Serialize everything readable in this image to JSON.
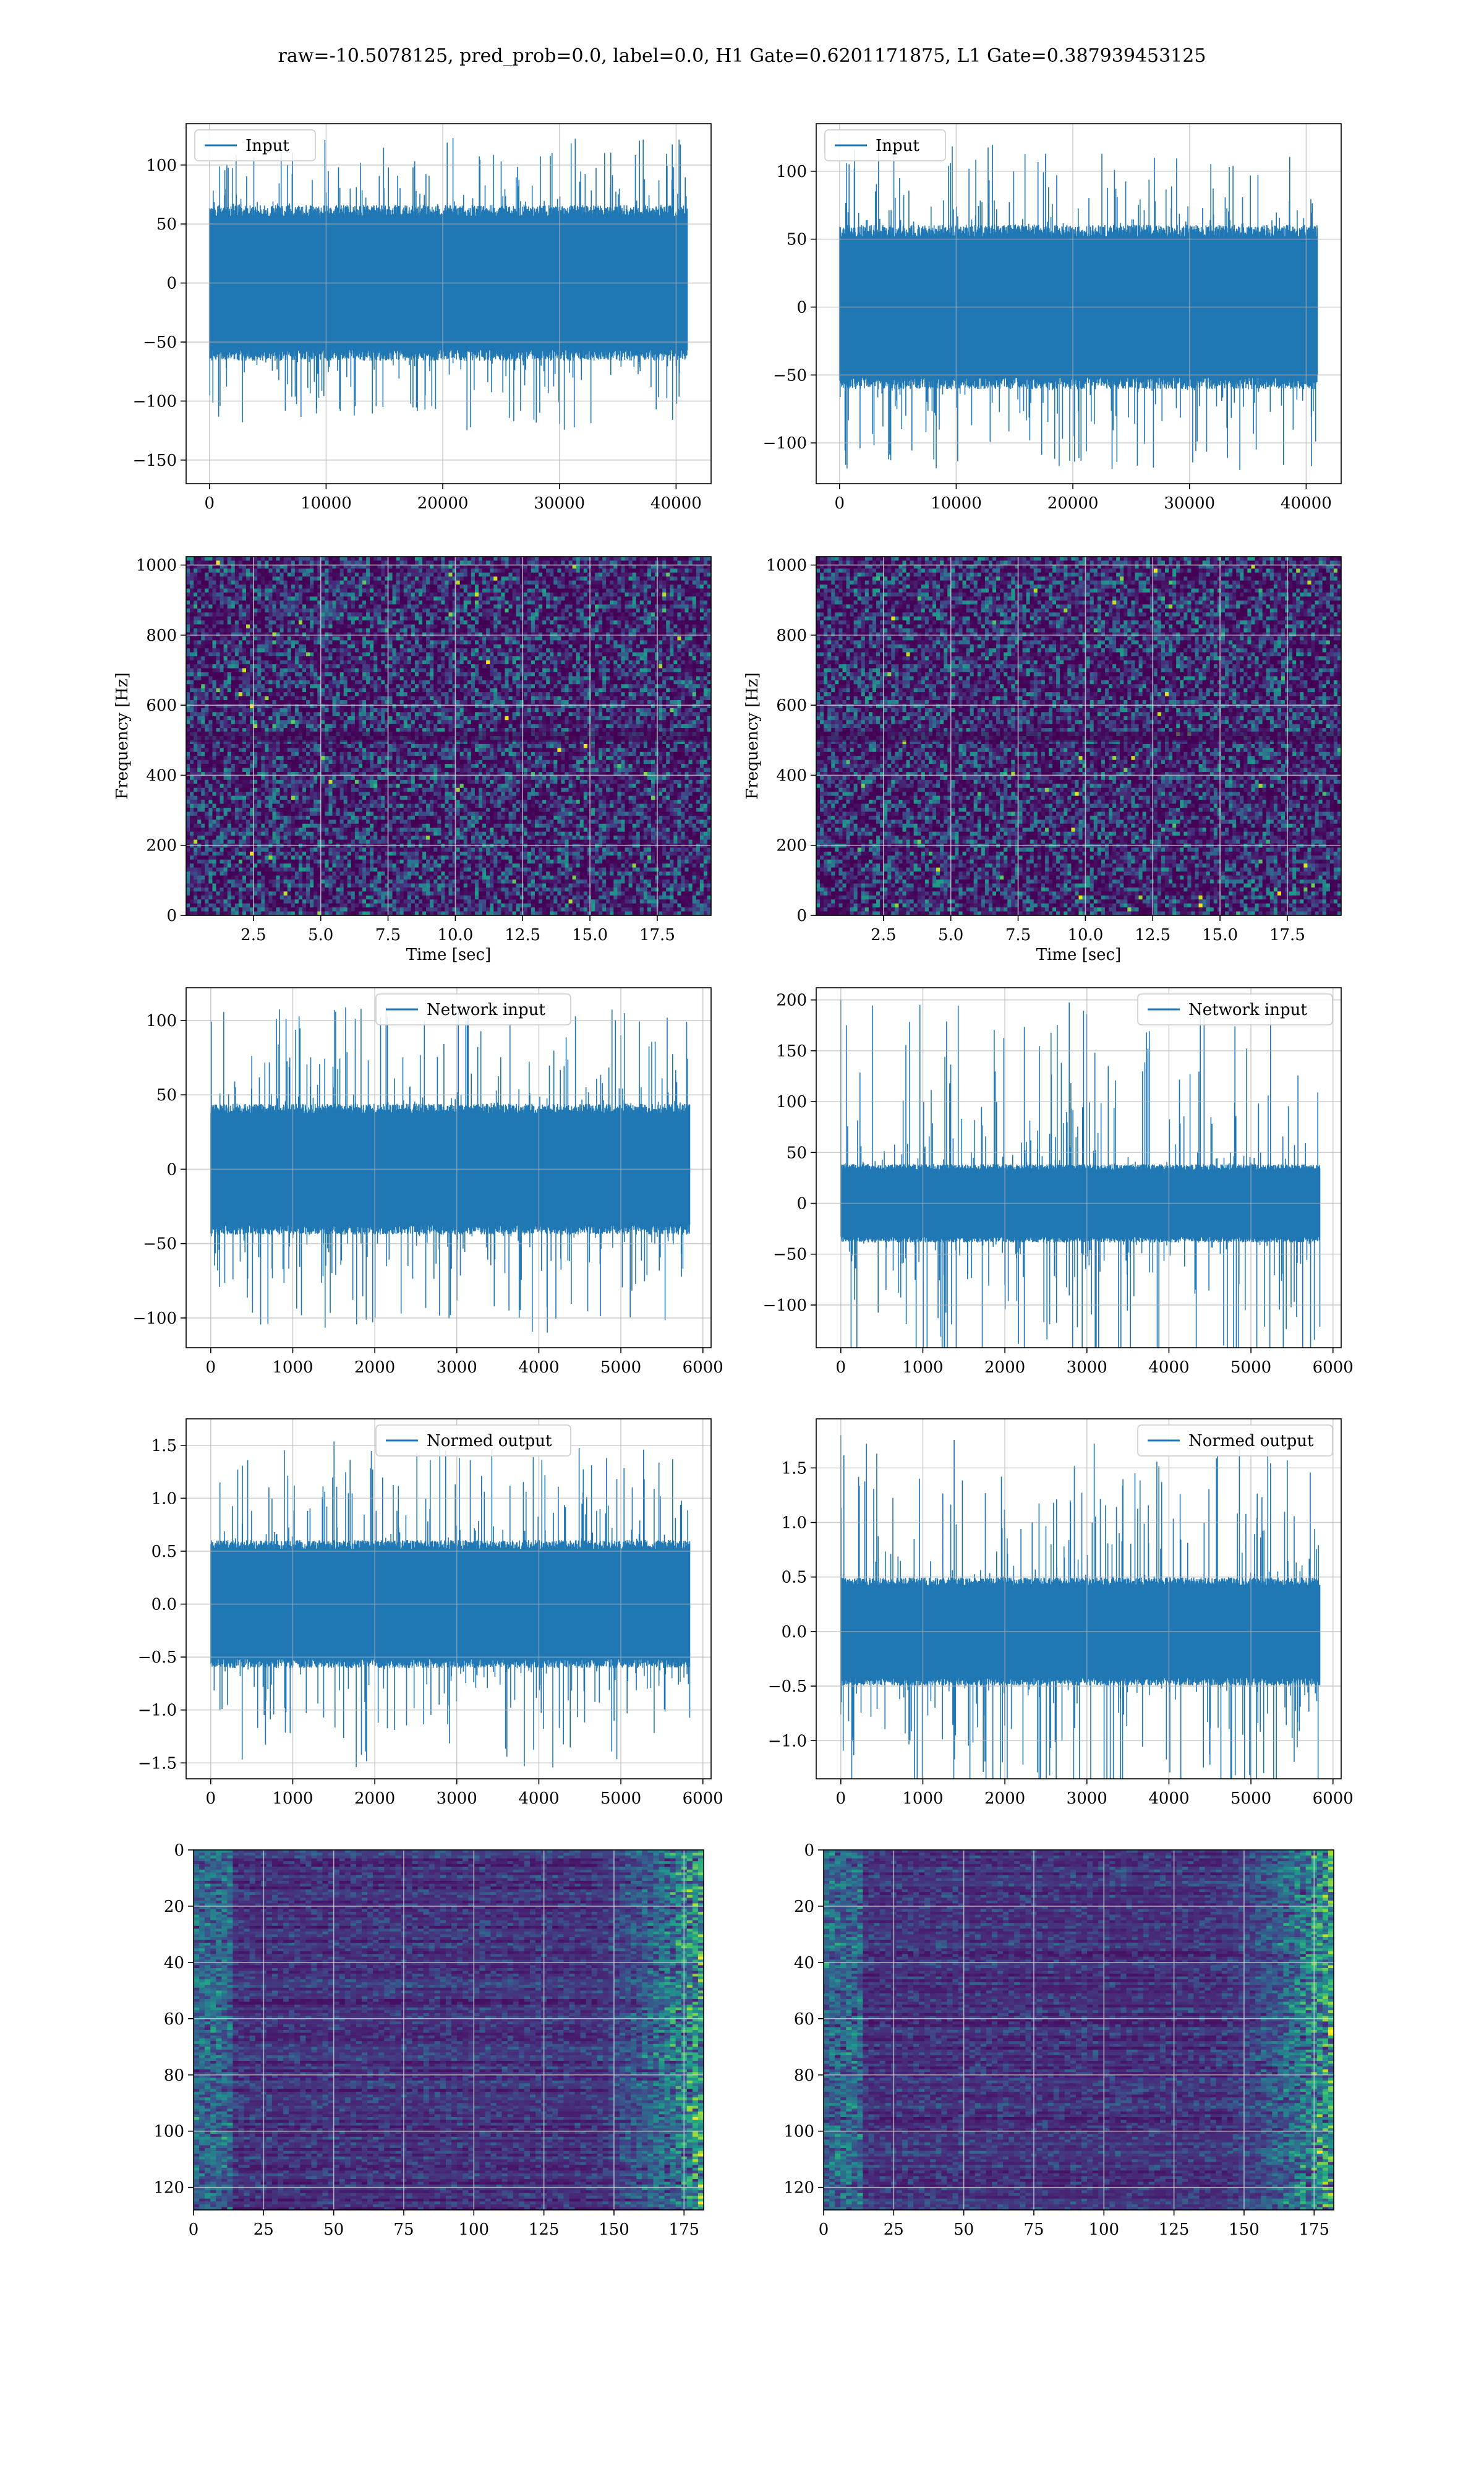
{
  "figure": {
    "title": "raw=-10.5078125, pred_prob=0.0, label=0.0, H1 Gate=0.6201171875, L1 Gate=0.387939453125"
  },
  "colors": {
    "line": "#1f77b4",
    "grid": "#b0b0b0",
    "viridis_dark": "#440154",
    "viridis_mid": "#31688e",
    "viridis_light": "#35b779",
    "viridis_bright": "#fde725"
  },
  "chart_data": [
    {
      "id": "h1-input",
      "type": "line",
      "title": "",
      "xlabel": "",
      "ylabel": "",
      "legend": {
        "entries": [
          "Input"
        ],
        "placement": "top-left"
      },
      "grid": true,
      "xlim": [
        -2000,
        43000
      ],
      "ylim": [
        -170,
        135
      ],
      "xticks": [
        0,
        10000,
        20000,
        30000,
        40000
      ],
      "xtick_labels": [
        "0",
        "10000",
        "20000",
        "30000",
        "40000"
      ],
      "yticks": [
        -150,
        -100,
        -50,
        0,
        50,
        100
      ],
      "ytick_labels": [
        "−150",
        "−100",
        "−50",
        "0",
        "50",
        "100"
      ],
      "series": [
        {
          "name": "Input",
          "x_range": [
            0,
            40959
          ],
          "envelope_abs": 60,
          "spike_abs": 125
        }
      ]
    },
    {
      "id": "l1-input",
      "type": "line",
      "title": "",
      "xlabel": "",
      "ylabel": "",
      "legend": {
        "entries": [
          "Input"
        ],
        "placement": "top-left"
      },
      "grid": true,
      "xlim": [
        -2000,
        43000
      ],
      "ylim": [
        -130,
        135
      ],
      "xticks": [
        0,
        10000,
        20000,
        30000,
        40000
      ],
      "xtick_labels": [
        "0",
        "10000",
        "20000",
        "30000",
        "40000"
      ],
      "yticks": [
        -100,
        -50,
        0,
        50,
        100
      ],
      "ytick_labels": [
        "−100",
        "−50",
        "0",
        "50",
        "100"
      ],
      "series": [
        {
          "name": "Input",
          "x_range": [
            0,
            40959
          ],
          "envelope_abs": 55,
          "spike_abs": 120
        }
      ]
    },
    {
      "id": "h1-spectrogram",
      "type": "heatmap",
      "title": "",
      "xlabel": "Time [sec]",
      "ylabel": "Frequency [Hz]",
      "grid": true,
      "xlim": [
        0,
        19.5
      ],
      "ylim": [
        0,
        1024
      ],
      "xticks": [
        2.5,
        5.0,
        7.5,
        10.0,
        12.5,
        15.0,
        17.5
      ],
      "xtick_labels": [
        "2.5",
        "5.0",
        "7.5",
        "10.0",
        "12.5",
        "15.0",
        "17.5"
      ],
      "yticks": [
        0,
        200,
        400,
        600,
        800,
        1000
      ],
      "ytick_labels": [
        "0",
        "200",
        "400",
        "600",
        "800",
        "1000"
      ]
    },
    {
      "id": "l1-spectrogram",
      "type": "heatmap",
      "title": "",
      "xlabel": "Time [sec]",
      "ylabel": "Frequency [Hz]",
      "grid": true,
      "xlim": [
        0,
        19.5
      ],
      "ylim": [
        0,
        1024
      ],
      "xticks": [
        2.5,
        5.0,
        7.5,
        10.0,
        12.5,
        15.0,
        17.5
      ],
      "xtick_labels": [
        "2.5",
        "5.0",
        "7.5",
        "10.0",
        "12.5",
        "15.0",
        "17.5"
      ],
      "yticks": [
        0,
        200,
        400,
        600,
        800,
        1000
      ],
      "ytick_labels": [
        "0",
        "200",
        "400",
        "600",
        "800",
        "1000"
      ]
    },
    {
      "id": "h1-network-input",
      "type": "line",
      "title": "",
      "xlabel": "",
      "ylabel": "",
      "legend": {
        "entries": [
          "Network input"
        ],
        "placement": "top-center"
      },
      "grid": true,
      "xlim": [
        -300,
        6100
      ],
      "ylim": [
        -120,
        122
      ],
      "xticks": [
        0,
        1000,
        2000,
        3000,
        4000,
        5000,
        6000
      ],
      "xtick_labels": [
        "0",
        "1000",
        "2000",
        "3000",
        "4000",
        "5000",
        "6000"
      ],
      "yticks": [
        -100,
        -50,
        0,
        50,
        100
      ],
      "ytick_labels": [
        "−100",
        "−50",
        "0",
        "50",
        "100"
      ],
      "series": [
        {
          "name": "Network input",
          "x_range": [
            0,
            5840
          ],
          "envelope_abs": 40,
          "spike_abs": 110
        }
      ]
    },
    {
      "id": "l1-network-input",
      "type": "line",
      "title": "",
      "xlabel": "",
      "ylabel": "",
      "legend": {
        "entries": [
          "Network input"
        ],
        "placement": "top-right"
      },
      "grid": true,
      "xlim": [
        -300,
        6100
      ],
      "ylim": [
        -142,
        212
      ],
      "xticks": [
        0,
        1000,
        2000,
        3000,
        4000,
        5000,
        6000
      ],
      "xtick_labels": [
        "0",
        "1000",
        "2000",
        "3000",
        "4000",
        "5000",
        "6000"
      ],
      "yticks": [
        -100,
        -50,
        0,
        50,
        100,
        150,
        200
      ],
      "ytick_labels": [
        "−100",
        "−50",
        "0",
        "50",
        "100",
        "150",
        "200"
      ],
      "series": [
        {
          "name": "Network input",
          "x_range": [
            0,
            5840
          ],
          "envelope_abs": 35,
          "spike_abs": 200
        }
      ]
    },
    {
      "id": "h1-normed-output",
      "type": "line",
      "title": "",
      "xlabel": "",
      "ylabel": "",
      "legend": {
        "entries": [
          "Normed output"
        ],
        "placement": "top-center"
      },
      "grid": true,
      "xlim": [
        -300,
        6100
      ],
      "ylim": [
        -1.65,
        1.75
      ],
      "xticks": [
        0,
        1000,
        2000,
        3000,
        4000,
        5000,
        6000
      ],
      "xtick_labels": [
        "0",
        "1000",
        "2000",
        "3000",
        "4000",
        "5000",
        "6000"
      ],
      "yticks": [
        -1.5,
        -1.0,
        -0.5,
        0.0,
        0.5,
        1.0,
        1.5
      ],
      "ytick_labels": [
        "−1.5",
        "−1.0",
        "−0.5",
        "0.0",
        "0.5",
        "1.0",
        "1.5"
      ],
      "series": [
        {
          "name": "Normed output",
          "x_range": [
            0,
            5840
          ],
          "envelope_abs": 0.55,
          "spike_abs": 1.55
        }
      ]
    },
    {
      "id": "l1-normed-output",
      "type": "line",
      "title": "",
      "xlabel": "",
      "ylabel": "",
      "legend": {
        "entries": [
          "Normed output"
        ],
        "placement": "top-right"
      },
      "grid": true,
      "xlim": [
        -300,
        6100
      ],
      "ylim": [
        -1.35,
        1.95
      ],
      "xticks": [
        0,
        1000,
        2000,
        3000,
        4000,
        5000,
        6000
      ],
      "xtick_labels": [
        "0",
        "1000",
        "2000",
        "3000",
        "4000",
        "5000",
        "6000"
      ],
      "yticks": [
        -1.0,
        -0.5,
        0.0,
        0.5,
        1.0,
        1.5
      ],
      "ytick_labels": [
        "−1.0",
        "−0.5",
        "0.0",
        "0.5",
        "1.0",
        "1.5"
      ],
      "series": [
        {
          "name": "Normed output",
          "x_range": [
            0,
            5840
          ],
          "envelope_abs": 0.45,
          "spike_abs": 1.8
        }
      ]
    },
    {
      "id": "h1-feature-map",
      "type": "heatmap",
      "title": "",
      "xlabel": "",
      "ylabel": "",
      "grid": true,
      "xlim": [
        0,
        182
      ],
      "ylim": [
        128,
        0
      ],
      "xticks": [
        0,
        25,
        50,
        75,
        100,
        125,
        150,
        175
      ],
      "xtick_labels": [
        "0",
        "25",
        "50",
        "75",
        "100",
        "125",
        "150",
        "175"
      ],
      "yticks": [
        0,
        20,
        40,
        60,
        80,
        100,
        120
      ],
      "ytick_labels": [
        "0",
        "20",
        "40",
        "60",
        "80",
        "100",
        "120"
      ]
    },
    {
      "id": "l1-feature-map",
      "type": "heatmap",
      "title": "",
      "xlabel": "",
      "ylabel": "",
      "grid": true,
      "xlim": [
        0,
        182
      ],
      "ylim": [
        128,
        0
      ],
      "xticks": [
        0,
        25,
        50,
        75,
        100,
        125,
        150,
        175
      ],
      "xtick_labels": [
        "0",
        "25",
        "50",
        "75",
        "100",
        "125",
        "150",
        "175"
      ],
      "yticks": [
        0,
        20,
        40,
        60,
        80,
        100,
        120
      ],
      "ytick_labels": [
        "0",
        "20",
        "40",
        "60",
        "80",
        "100",
        "120"
      ]
    }
  ]
}
